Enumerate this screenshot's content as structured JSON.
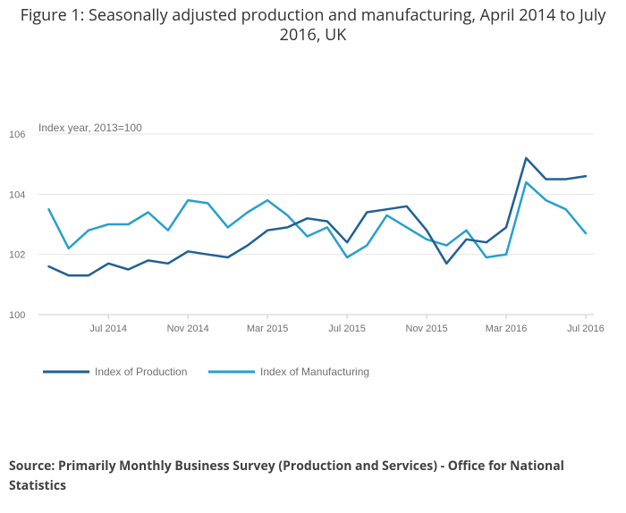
{
  "title": "Figure 1: Seasonally adjusted production and manufacturing, April 2014 to July 2016, UK",
  "source": "Source: Primarily Monthly Business Survey (Production and Services) - Office for National Statistics",
  "colors": {
    "production": "#206095",
    "manufacturing": "#27a0cc",
    "grid": "#e6e6e6",
    "axis": "#cccccc",
    "text": "#707070"
  },
  "chart_data": {
    "type": "line",
    "title": "Figure 1: Seasonally adjusted production and manufacturing, April 2014 to July 2016, UK",
    "ylabel": "Index year, 2013=100",
    "xlabel": "",
    "ylim": [
      100,
      106
    ],
    "yticks": [
      100,
      102,
      104,
      106
    ],
    "grid": true,
    "legend_position": "bottom-left",
    "categories": [
      "Apr 2014",
      "May 2014",
      "Jun 2014",
      "Jul 2014",
      "Aug 2014",
      "Sep 2014",
      "Oct 2014",
      "Nov 2014",
      "Dec 2014",
      "Jan 2015",
      "Feb 2015",
      "Mar 2015",
      "Apr 2015",
      "May 2015",
      "Jun 2015",
      "Jul 2015",
      "Aug 2015",
      "Sep 2015",
      "Oct 2015",
      "Nov 2015",
      "Dec 2015",
      "Jan 2016",
      "Feb 2016",
      "Mar 2016",
      "Apr 2016",
      "May 2016",
      "Jun 2016",
      "Jul 2016"
    ],
    "x_tick_labels": [
      {
        "index": 3,
        "label": "Jul 2014"
      },
      {
        "index": 7,
        "label": "Nov 2014"
      },
      {
        "index": 11,
        "label": "Mar 2015"
      },
      {
        "index": 15,
        "label": "Jul 2015"
      },
      {
        "index": 19,
        "label": "Nov 2015"
      },
      {
        "index": 23,
        "label": "Mar 2016"
      },
      {
        "index": 27,
        "label": "Jul 2016"
      }
    ],
    "series": [
      {
        "name": "Index of Production",
        "values": [
          101.6,
          101.3,
          101.3,
          101.7,
          101.5,
          101.8,
          101.7,
          102.1,
          102.0,
          101.9,
          102.3,
          102.8,
          102.9,
          103.2,
          103.1,
          102.4,
          103.4,
          103.5,
          103.6,
          102.8,
          101.7,
          102.5,
          102.4,
          102.9,
          105.2,
          104.5,
          104.5,
          104.6
        ]
      },
      {
        "name": "Index of Manufacturing",
        "values": [
          103.5,
          102.2,
          102.8,
          103.0,
          103.0,
          103.4,
          102.8,
          103.8,
          103.7,
          102.9,
          103.4,
          103.8,
          103.3,
          102.6,
          102.9,
          101.9,
          102.3,
          103.3,
          102.9,
          102.5,
          102.3,
          102.8,
          101.9,
          102.0,
          104.4,
          103.8,
          103.5,
          102.7
        ]
      }
    ]
  }
}
